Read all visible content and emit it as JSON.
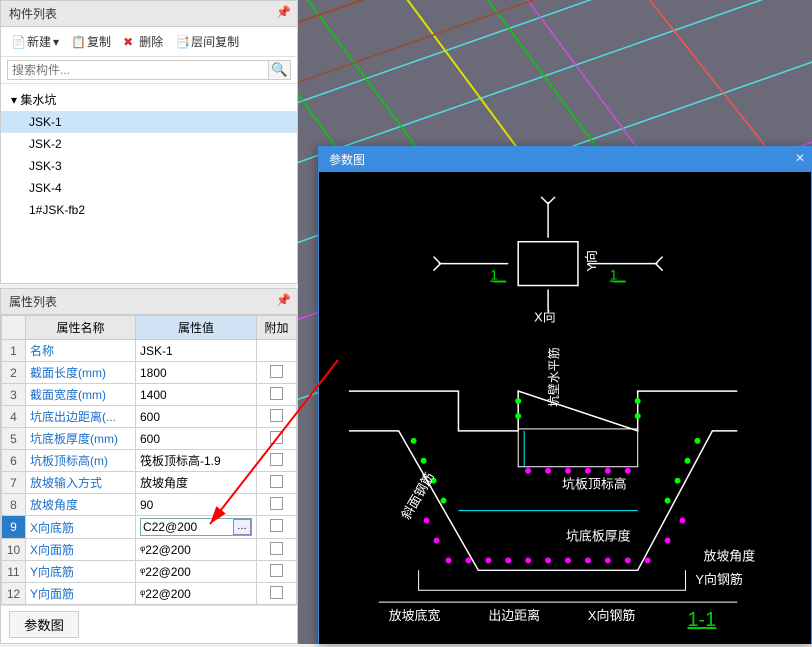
{
  "component_panel": {
    "title": "构件列表",
    "toolbar": {
      "new": "新建",
      "copy": "复制",
      "del": "删除",
      "layer_copy": "层间复制"
    },
    "search_placeholder": "搜索构件...",
    "tree_root": "集水坑",
    "items": [
      "JSK-1",
      "JSK-2",
      "JSK-3",
      "JSK-4",
      "1#JSK-fb2"
    ],
    "selected": "JSK-1"
  },
  "attr_panel": {
    "title": "属性列表",
    "columns": {
      "name": "属性名称",
      "value": "属性值",
      "extra": "附加"
    },
    "rows": [
      {
        "n": "1",
        "name": "名称",
        "val": "JSK-1",
        "blue": true
      },
      {
        "n": "2",
        "name": "截面长度(mm)",
        "val": "1800",
        "blue": true
      },
      {
        "n": "3",
        "name": "截面宽度(mm)",
        "val": "1400",
        "blue": true
      },
      {
        "n": "4",
        "name": "坑底出边距离(...",
        "val": "600",
        "blue": true
      },
      {
        "n": "5",
        "name": "坑底板厚度(mm)",
        "val": "600",
        "blue": true
      },
      {
        "n": "6",
        "name": "坑板顶标高(m)",
        "val": "筏板顶标高-1.9",
        "blue": true
      },
      {
        "n": "7",
        "name": "放坡输入方式",
        "val": "放坡角度",
        "blue": true
      },
      {
        "n": "8",
        "name": "放坡角度",
        "val": "90",
        "blue": true
      },
      {
        "n": "9",
        "name": "X向底筋",
        "val": "C22@200",
        "blue": true,
        "sel": true
      },
      {
        "n": "10",
        "name": "X向面筋",
        "val": "ᵠ22@200",
        "blue": true
      },
      {
        "n": "11",
        "name": "Y向底筋",
        "val": "ᵠ22@200",
        "blue": true
      },
      {
        "n": "12",
        "name": "Y向面筋",
        "val": "ᵠ22@200",
        "blue": true
      }
    ],
    "param_btn": "参数图"
  },
  "param_dialog": {
    "title": "参数图",
    "labels": {
      "xdir": "X向",
      "ydir": "Y向",
      "one": "1",
      "sec": "1-1",
      "wall_rebar": "坑壁水平筋",
      "top_elev": "坑板顶标高",
      "bottom_thick": "坑底板厚度",
      "slope_rebar": "斜面钢筋",
      "slope_angle": "放坡角度",
      "yrebar": "Y向钢筋",
      "slope_width": "放坡底宽",
      "edge_dist": "出边距离",
      "xrebar": "X向钢筋"
    },
    "colors": {
      "bg": "#000000",
      "line": "#ffffff",
      "dim": "#00ffff",
      "rebar": "#ff00ff",
      "rebar2": "#00ff00",
      "section": "#00d000",
      "title": "#ffffff",
      "blue": "#3a8dde"
    }
  }
}
